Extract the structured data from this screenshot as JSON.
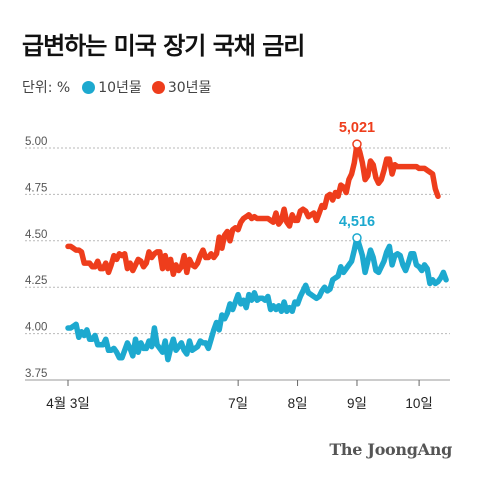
{
  "title": "급변하는 미국 장기 국채 금리",
  "legend": {
    "unit": "단위: %",
    "items": [
      {
        "label": "10년물",
        "color": "#1da9cf"
      },
      {
        "label": "30년물",
        "color": "#ee3d1c"
      }
    ]
  },
  "brand": "The JoongAng",
  "chart_data": {
    "type": "line",
    "title": "급변하는 미국 장기 국채 금리",
    "xlabel": "",
    "ylabel": "",
    "ylim": [
      3.75,
      5.0
    ],
    "yticks": [
      "5.00",
      "4.75",
      "4.50",
      "4.25",
      "4.00",
      "3.75"
    ],
    "xticks": [
      {
        "label": "4월 3일",
        "x": 0
      },
      {
        "label": "7일",
        "x": 63
      },
      {
        "label": "8일",
        "x": 85
      },
      {
        "label": "9일",
        "x": 107
      },
      {
        "label": "10일",
        "x": 130
      }
    ],
    "grid": true,
    "series": [
      {
        "name": "30년물",
        "color": "#ee3d1c",
        "values": [
          4.47,
          4.47,
          4.46,
          4.45,
          4.45,
          4.44,
          4.38,
          4.38,
          4.38,
          4.36,
          4.36,
          4.39,
          4.35,
          4.35,
          4.38,
          4.33,
          4.37,
          4.42,
          4.4,
          4.43,
          4.42,
          4.43,
          4.35,
          4.38,
          4.34,
          4.37,
          4.4,
          4.39,
          4.36,
          4.38,
          4.44,
          4.41,
          4.43,
          4.44,
          4.44,
          4.35,
          4.42,
          4.35,
          4.4,
          4.32,
          4.37,
          4.34,
          4.36,
          4.42,
          4.33,
          4.4,
          4.37,
          4.36,
          4.38,
          4.42,
          4.45,
          4.41,
          4.41,
          4.43,
          4.41,
          4.43,
          4.52,
          4.46,
          4.53,
          4.55,
          4.5,
          4.56,
          4.57,
          4.56,
          4.6,
          4.62,
          4.63,
          4.64,
          4.62,
          4.63,
          4.62,
          4.62,
          4.62,
          4.62,
          4.62,
          4.61,
          4.6,
          4.65,
          4.59,
          4.61,
          4.67,
          4.6,
          4.58,
          4.64,
          4.61,
          4.61,
          4.66,
          4.67,
          4.66,
          4.63,
          4.64,
          4.65,
          4.61,
          4.65,
          4.69,
          4.68,
          4.74,
          4.75,
          4.72,
          4.76,
          4.74,
          4.8,
          4.79,
          4.76,
          4.83,
          4.86,
          4.92,
          5.021,
          4.98,
          4.92,
          4.83,
          4.85,
          4.93,
          4.91,
          4.84,
          4.81,
          4.83,
          4.88,
          4.94,
          4.94,
          4.86,
          4.91,
          4.9,
          4.9,
          4.9,
          4.9,
          4.9,
          4.9,
          4.9,
          4.9,
          4.89,
          4.89,
          4.89,
          4.88,
          4.87,
          4.86,
          4.78,
          4.74
        ],
        "annotation": {
          "label": "5,021",
          "index": 107,
          "value": 5.021
        }
      },
      {
        "name": "10년물",
        "color": "#1da9cf",
        "values": [
          4.03,
          4.03,
          4.04,
          4.05,
          3.98,
          4.01,
          3.99,
          4.02,
          3.97,
          3.97,
          3.99,
          3.94,
          3.94,
          3.94,
          3.97,
          3.91,
          3.91,
          3.92,
          3.9,
          3.87,
          3.87,
          3.91,
          3.95,
          3.92,
          3.88,
          3.97,
          3.9,
          3.95,
          3.92,
          3.92,
          3.96,
          3.93,
          4.03,
          3.94,
          3.92,
          3.9,
          3.96,
          3.86,
          3.92,
          3.97,
          3.91,
          3.93,
          3.95,
          3.91,
          3.89,
          3.96,
          3.91,
          3.92,
          3.93,
          3.96,
          3.95,
          3.95,
          3.92,
          3.97,
          4.02,
          4.06,
          4.02,
          4.1,
          4.08,
          4.11,
          4.16,
          4.13,
          4.17,
          4.21,
          4.16,
          4.18,
          4.14,
          4.21,
          4.18,
          4.22,
          4.18,
          4.19,
          4.19,
          4.18,
          4.2,
          4.13,
          4.15,
          4.13,
          4.15,
          4.12,
          4.17,
          4.12,
          4.14,
          4.12,
          4.17,
          4.16,
          4.2,
          4.23,
          4.26,
          4.22,
          4.21,
          4.2,
          4.19,
          4.2,
          4.23,
          4.25,
          4.23,
          4.24,
          4.29,
          4.3,
          4.31,
          4.36,
          4.33,
          4.35,
          4.37,
          4.39,
          4.45,
          4.516,
          4.47,
          4.42,
          4.33,
          4.39,
          4.45,
          4.41,
          4.34,
          4.33,
          4.36,
          4.39,
          4.44,
          4.47,
          4.37,
          4.42,
          4.43,
          4.42,
          4.37,
          4.34,
          4.38,
          4.43,
          4.43,
          4.37,
          4.36,
          4.34,
          4.37,
          4.35,
          4.27,
          4.29,
          4.27,
          4.28,
          4.3,
          4.33,
          4.29
        ],
        "annotation": {
          "label": "4,516",
          "index": 107,
          "value": 4.516
        }
      }
    ]
  }
}
